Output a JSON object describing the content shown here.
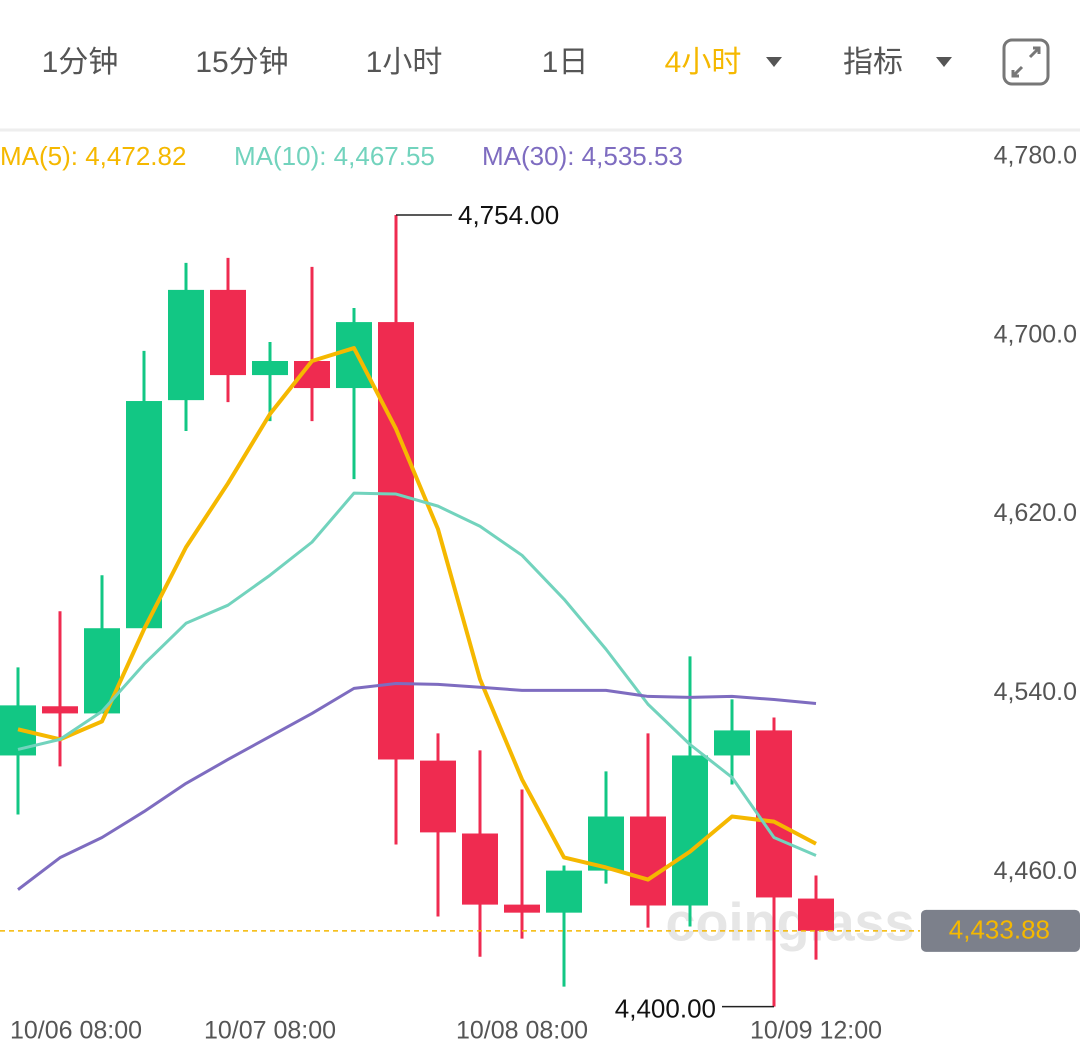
{
  "toolbar": {
    "tabs": [
      {
        "label": "1分钟",
        "active": false,
        "dropdown": false
      },
      {
        "label": "15分钟",
        "active": false,
        "dropdown": false
      },
      {
        "label": "1小时",
        "active": false,
        "dropdown": false
      },
      {
        "label": "1日",
        "active": false,
        "dropdown": false
      },
      {
        "label": "4小时",
        "active": true,
        "dropdown": true
      },
      {
        "label": "指标",
        "active": false,
        "dropdown": true
      }
    ]
  },
  "chart_data": {
    "type": "candlestick",
    "categories": [
      "10/06 08:00",
      null,
      null,
      null,
      null,
      null,
      "10/07 08:00",
      null,
      null,
      null,
      null,
      null,
      "10/08 08:00",
      null,
      null,
      null,
      null,
      null,
      null,
      "10/09 12:00"
    ],
    "open": [
      4512.3,
      4534.3,
      4531.1,
      4569.2,
      4671.2,
      4720.5,
      4682.4,
      4688.7,
      4676.6,
      4706.1,
      4510.0,
      4477.4,
      4445.6,
      4442.0,
      4460.8,
      4485.0,
      4445.2,
      4512.3,
      4523.5,
      4448.3
    ],
    "high": [
      4551.7,
      4576.8,
      4592.9,
      4693.2,
      4732.6,
      4734.8,
      4697.2,
      4730.8,
      4712.4,
      4754.0,
      4522.2,
      4514.6,
      4497.1,
      4463.1,
      4505.2,
      4522.2,
      4556.6,
      4537.4,
      4529.3,
      4458.6
    ],
    "low": [
      4485.9,
      4507.4,
      4531.1,
      4569.2,
      4657.4,
      4670.3,
      4661.8,
      4661.8,
      4635.9,
      4472.5,
      4440.3,
      4422.3,
      4430.4,
      4408.9,
      4455.0,
      4435.3,
      4435.8,
      4499.3,
      4400.0,
      4421.0
    ],
    "close": [
      4534.7,
      4531.1,
      4569.2,
      4670.8,
      4720.5,
      4682.4,
      4688.7,
      4676.6,
      4706.1,
      4510.5,
      4477.9,
      4445.6,
      4442.0,
      4460.8,
      4485.0,
      4445.2,
      4512.3,
      4523.5,
      4448.8,
      4433.88
    ],
    "up_color": "#12c784",
    "down_color": "#ef2b50",
    "series": [
      {
        "name": "MA(5)",
        "legend": "MA(5): 4,472.82",
        "color": "#f5b800",
        "values": [
          4524.0,
          4519.5,
          4527.5,
          4568.7,
          4605.4,
          4634.0,
          4665.0,
          4688.7,
          4694.5,
          4658.3,
          4613.5,
          4546.4,
          4501.6,
          4466.7,
          4462.2,
          4456.8,
          4469.3,
          4485.0,
          4482.7,
          4472.82
        ]
      },
      {
        "name": "MA(10)",
        "legend": "MA(10): 4,467.55",
        "color": "#72d3bd",
        "values": [
          4515.0,
          4519.5,
          4532.0,
          4553.1,
          4571.4,
          4579.5,
          4592.9,
          4607.7,
          4629.6,
          4629.2,
          4623.8,
          4614.8,
          4601.8,
          4582.2,
          4559.8,
          4535.2,
          4517.2,
          4502.5,
          4475.6,
          4467.55
        ]
      },
      {
        "name": "MA(30)",
        "legend": "MA(30): 4,535.53",
        "color": "#7e6cc0",
        "values": [
          4452.3,
          4466.6,
          4475.6,
          4487.2,
          4499.8,
          4510.5,
          4520.8,
          4531.1,
          4542.3,
          4544.5,
          4544.1,
          4542.8,
          4541.4,
          4541.4,
          4541.4,
          4538.7,
          4538.3,
          4538.7,
          4537.3,
          4535.53
        ]
      }
    ],
    "ylim": [
      4394,
      4792
    ],
    "yticks": [
      {
        "value": 4460,
        "label": "4,460.0"
      },
      {
        "value": 4540,
        "label": "4,540.0"
      },
      {
        "value": 4620,
        "label": "4,620.0"
      },
      {
        "value": 4700,
        "label": "4,700.0"
      },
      {
        "value": 4780,
        "label": "4,780.0"
      }
    ],
    "grid": false,
    "annotations": [
      {
        "value": 4754,
        "label": "4,754.00",
        "index": 9
      },
      {
        "value": 4400,
        "label": "4,400.00",
        "index": 18
      }
    ],
    "last_price": {
      "value": 4433.88,
      "label": "4,433.88"
    },
    "watermark": "coinglass"
  }
}
